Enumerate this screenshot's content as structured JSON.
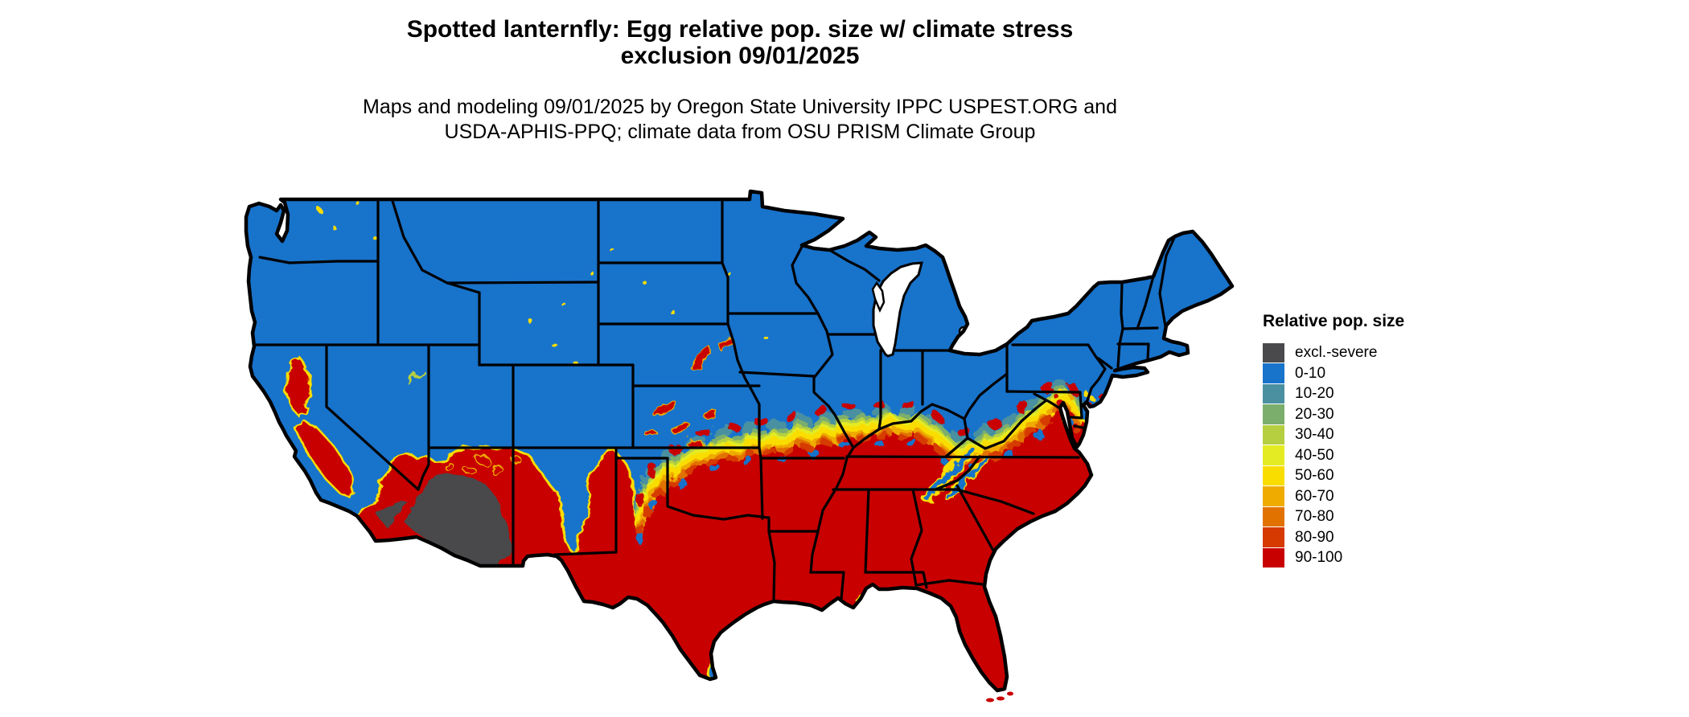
{
  "title": {
    "line1": "Spotted lanternfly: Egg relative pop. size w/ climate stress",
    "line2": "exclusion 09/01/2025"
  },
  "subtitle": {
    "line1": "Maps and modeling 09/01/2025 by Oregon State University IPPC USPEST.ORG and",
    "line2": "USDA-APHIS-PPQ; climate data from OSU PRISM Climate Group"
  },
  "legend": {
    "title": "Relative pop. size",
    "items": [
      {
        "label": "excl.-severe",
        "color": "#4a4a4c"
      },
      {
        "label": "0-10",
        "color": "#1873cb"
      },
      {
        "label": "10-20",
        "color": "#4a90a0"
      },
      {
        "label": "20-30",
        "color": "#7bae6d"
      },
      {
        "label": "30-40",
        "color": "#b5cf40"
      },
      {
        "label": "40-50",
        "color": "#e5eb22"
      },
      {
        "label": "50-60",
        "color": "#fadd00"
      },
      {
        "label": "60-70",
        "color": "#efab00"
      },
      {
        "label": "70-80",
        "color": "#e27200"
      },
      {
        "label": "80-90",
        "color": "#d63a00"
      },
      {
        "label": "90-100",
        "color": "#c80000"
      }
    ]
  },
  "map": {
    "name": "Contiguous United States",
    "colors": {
      "low": "#1873cb",
      "high": "#c80000",
      "excluded": "#4a4a4c",
      "fringe": "#fadd00",
      "border": "#000000",
      "water": "#ffffff"
    },
    "regions": [
      {
        "name": "northern-and-mountain-west",
        "class": "0-10"
      },
      {
        "name": "southern-states",
        "class": "90-100"
      },
      {
        "name": "sonoran-mojave-desert",
        "class": "excl.-severe"
      },
      {
        "name": "central-valley-california",
        "class": "90-100"
      },
      {
        "name": "midwest-to-chesapeake-transition-band",
        "class": "10-90 mixed"
      },
      {
        "name": "appalachian-highlands",
        "class": "0-10"
      }
    ]
  }
}
